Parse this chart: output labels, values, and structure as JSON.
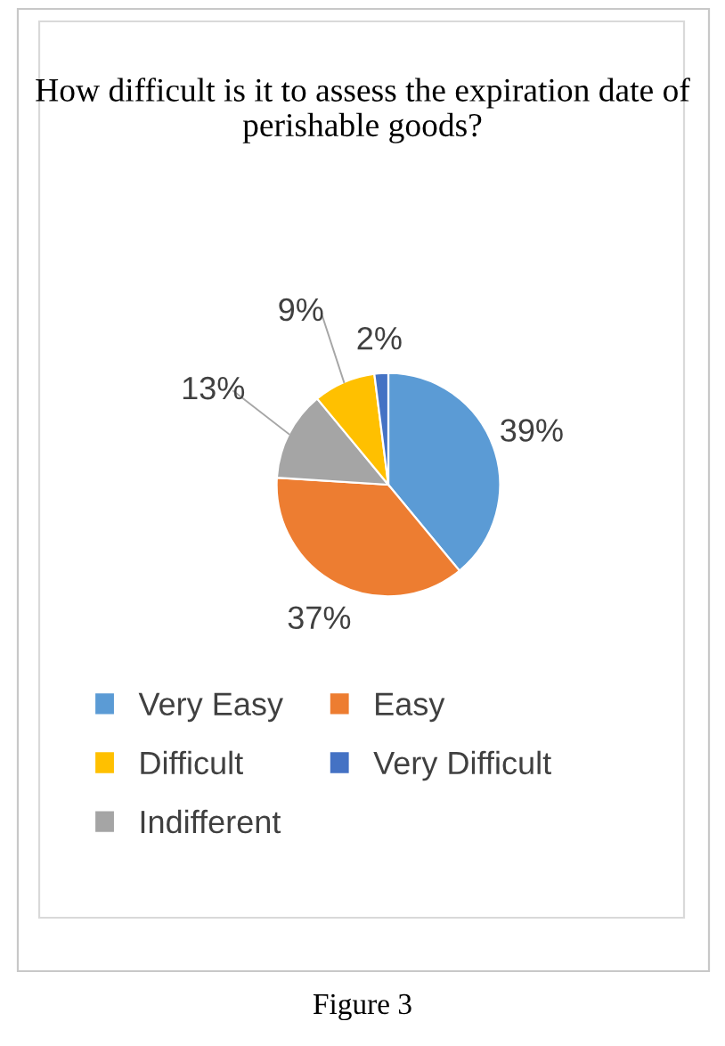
{
  "chart_data": {
    "type": "pie",
    "title": "How difficult is it to assess the expiration date of perishable goods?",
    "categories": [
      "Very Easy",
      "Easy",
      "Indifferent",
      "Difficult",
      "Very Difficult"
    ],
    "values": [
      39,
      37,
      13,
      9,
      2
    ],
    "colors": [
      "#5b9bd5",
      "#ed7d31",
      "#a5a5a5",
      "#ffc000",
      "#4472c4"
    ],
    "value_labels": [
      "39%",
      "37%",
      "13%",
      "9%",
      "2%"
    ],
    "legend": "bottom",
    "annotations": [
      "Figure 3"
    ]
  }
}
